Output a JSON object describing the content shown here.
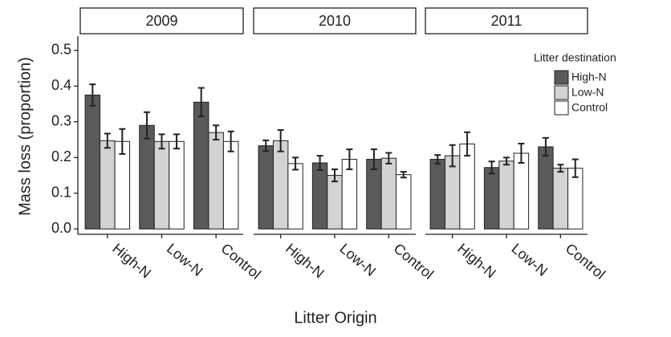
{
  "chart_data": {
    "type": "bar",
    "y_label": "Mass loss (proportion)",
    "x_label": "Litter Origin",
    "legend_title": "Litter destination",
    "categories": [
      "High-N",
      "Low-N",
      "Control"
    ],
    "series": [
      {
        "name": "High-N",
        "color": "#5a5a5a"
      },
      {
        "name": "Low-N",
        "color": "#d3d3d3"
      },
      {
        "name": "Control",
        "color": "#ffffff"
      }
    ],
    "ylim": [
      -0.015,
      0.54
    ],
    "yticks": [
      {
        "value": 0,
        "label": "0.0"
      },
      0.1,
      0.2,
      0.3,
      0.4,
      0.5
    ],
    "panels": [
      {
        "title": "2009",
        "series": [
          {
            "values": [
              0.375,
              0.29,
              0.355
            ],
            "errors": [
              0.03,
              0.037,
              0.04
            ]
          },
          {
            "values": [
              0.247,
              0.245,
              0.27
            ],
            "errors": [
              0.02,
              0.02,
              0.02
            ]
          },
          {
            "values": [
              0.245,
              0.245,
              0.245
            ],
            "errors": [
              0.035,
              0.02,
              0.028
            ]
          }
        ]
      },
      {
        "title": "2010",
        "series": [
          {
            "values": [
              0.233,
              0.185,
              0.195
            ],
            "errors": [
              0.015,
              0.02,
              0.028
            ]
          },
          {
            "values": [
              0.247,
              0.15,
              0.198
            ],
            "errors": [
              0.03,
              0.017,
              0.015
            ]
          },
          {
            "values": [
              0.183,
              0.195,
              0.152
            ],
            "errors": [
              0.017,
              0.028,
              0.008
            ]
          }
        ]
      },
      {
        "title": "2011",
        "series": [
          {
            "values": [
              0.195,
              0.172,
              0.23
            ],
            "errors": [
              0.012,
              0.017,
              0.025
            ]
          },
          {
            "values": [
              0.205,
              0.19,
              0.17
            ],
            "errors": [
              0.03,
              0.01,
              0.01
            ]
          },
          {
            "values": [
              0.238,
              0.212,
              0.17
            ],
            "errors": [
              0.033,
              0.027,
              0.025
            ]
          }
        ]
      }
    ]
  }
}
